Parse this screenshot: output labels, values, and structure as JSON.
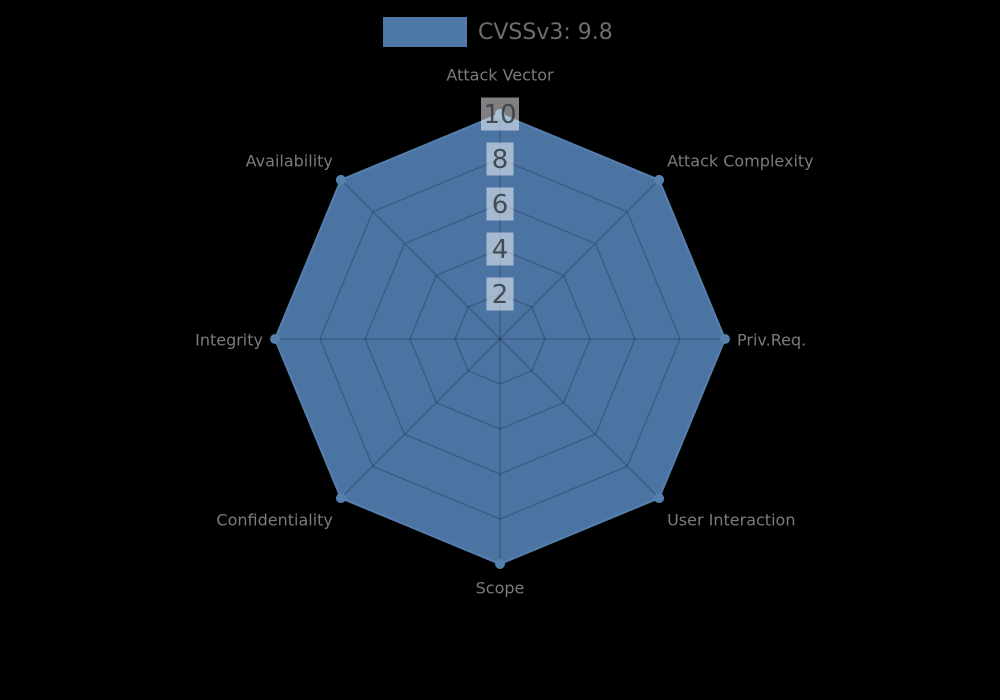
{
  "legend": {
    "label": "CVSSv3: 9.8",
    "swatch_color": "#4d78a8"
  },
  "chart_data": {
    "type": "radar",
    "title": "",
    "categories": [
      "Attack Vector",
      "Attack Complexity",
      "Priv.Req.",
      "User Interaction",
      "Scope",
      "Confidentiality",
      "Integrity",
      "Availability"
    ],
    "series": [
      {
        "name": "CVSSv3: 9.8",
        "values": [
          10,
          10,
          10,
          10,
          10,
          10,
          10,
          10
        ],
        "fill_color": "#4d78a8",
        "line_color": "#5580ad",
        "marker": "circle"
      }
    ],
    "radial_ticks": [
      2,
      4,
      6,
      8,
      10
    ],
    "rlim": [
      0,
      10
    ],
    "grid": true,
    "grid_shape": "polygon",
    "legend_position": "top-center",
    "background": "#000000",
    "label_color": "#7b7b7b",
    "tick_text_color": "#343c45",
    "tick_box_color": "rgba(255,255,255,0.5)",
    "grid_line_color": "rgba(0,0,0,0.22)"
  }
}
